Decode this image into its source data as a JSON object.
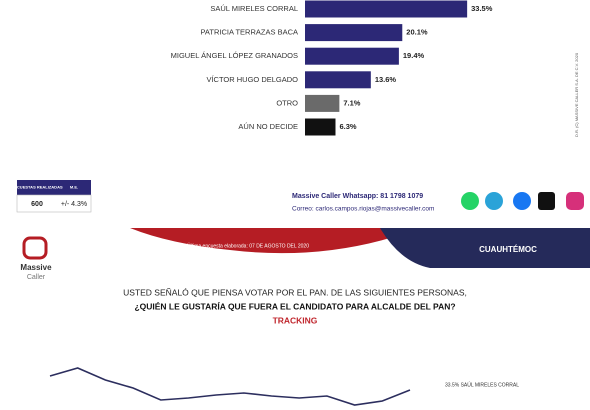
{
  "chart_data": [
    {
      "type": "hbar",
      "categories": [
        "SAÚL MIRELES CORRAL",
        "PATRICIA TERRAZAS BACA",
        "MIGUEL ÁNGEL LÓPEZ GRANADOS",
        "VÍCTOR HUGO DELGADO",
        "OTRO",
        "AÚN NO DECIDE"
      ],
      "values": [
        33.5,
        20.1,
        19.4,
        13.6,
        7.1,
        6.3
      ],
      "value_labels": [
        "33.5%",
        "20.1%",
        "19.4%",
        "13.6%",
        "7.1%",
        "6.3%"
      ],
      "colors": [
        "#2c2876",
        "#2c2876",
        "#2c2876",
        "#2c2876",
        "#6a6a6a",
        "#111111"
      ]
    },
    {
      "type": "line",
      "series": [
        {
          "name": "33.5% SAÚL MIRELES CORRAL",
          "color": "#2c2e5e",
          "values": [
            34.9,
            35.7,
            34.5,
            33.7,
            32.5,
            32.7,
            33.0,
            33.2,
            32.9,
            32.7,
            32.9,
            32.0,
            32.4,
            33.5
          ]
        }
      ]
    }
  ],
  "table": {
    "headers": [
      "ENCUESTAS REALIZADAS",
      "M.E."
    ],
    "row": [
      "600",
      "+/- 4.3%"
    ]
  },
  "contact": [
    "Massive Caller Whatsapp: 81 1798 1079",
    "Correo: carlos.campos.riojas@massivecaller.com"
  ],
  "copyright": "D.R. (C) MASSIVE CALLER S.A. DE C.V. 2020",
  "logo": [
    "Massive",
    "Caller"
  ],
  "date": "Última encuesta elaborada: 07 DE AGOSTO DEL 2020",
  "region": "CUAUHTÉMOC",
  "question": [
    "USTED SEÑALÓ QUE PIENSA VOTAR POR EL PAN. DE LAS SIGUIENTES PERSONAS,",
    "¿QUIÉN LE GUSTARÍA QUE FUERA EL CANDIDATO PARA ALCALDE DEL PAN?"
  ],
  "subtitle": "TRACKING"
}
